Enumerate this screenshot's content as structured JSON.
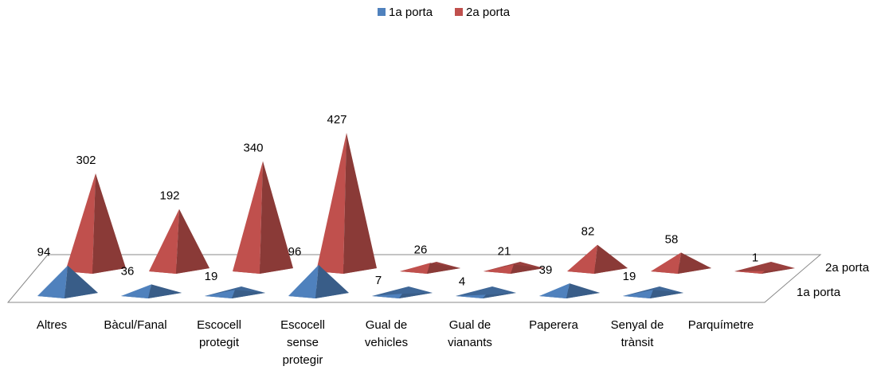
{
  "chart_data": {
    "type": "pyramid",
    "categories": [
      "Altres",
      "Bàcul/Fanal",
      "Escocell protegit",
      "Escocell sense protegir",
      "Gual de vehicles",
      "Gual de vianants",
      "Paperera",
      "Senyal de trànsit",
      "Parquímetre"
    ],
    "series": [
      {
        "name": "1a porta",
        "color": "#4f81bd",
        "values": [
          94,
          36,
          19,
          96,
          7,
          4,
          39,
          19,
          null
        ]
      },
      {
        "name": "2a porta",
        "color": "#c0504d",
        "values": [
          302,
          192,
          340,
          427,
          26,
          21,
          82,
          58,
          1
        ]
      }
    ],
    "legend": "top"
  }
}
